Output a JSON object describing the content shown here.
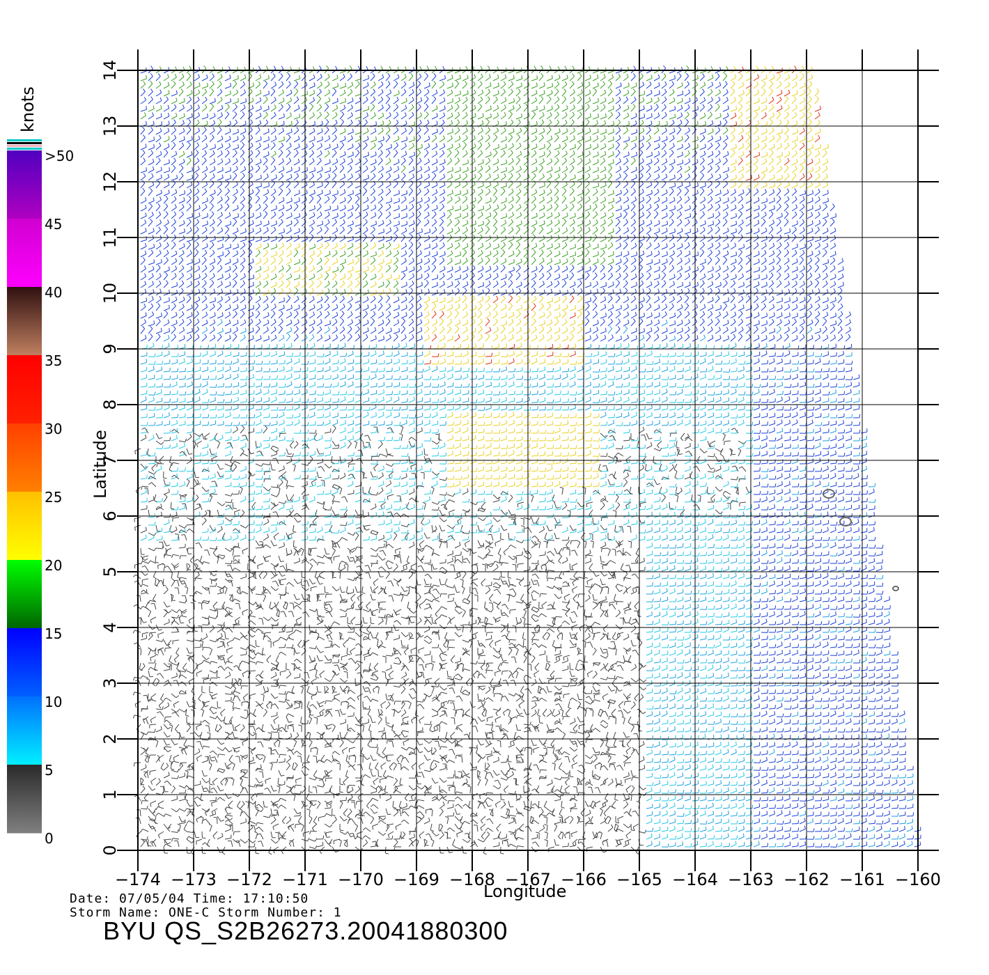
{
  "map": {
    "lon_range": [
      -174,
      -160
    ],
    "lat_range": [
      0,
      14
    ],
    "lon_ticks": [
      "-174",
      "-173",
      "-172",
      "-171",
      "-170",
      "-169",
      "-168",
      "-167",
      "-166",
      "-165",
      "-164",
      "-163",
      "-162",
      "-161",
      "-160"
    ],
    "lat_ticks": [
      "0",
      "1",
      "2",
      "3",
      "4",
      "5",
      "6",
      "7",
      "8",
      "9",
      "10",
      "11",
      "12",
      "13",
      "14"
    ],
    "xlabel": "Longitude",
    "ylabel": "Latitude",
    "swath_edge_east": [
      [
        -161.9,
        14
      ],
      [
        -160,
        0
      ]
    ],
    "field": "wind barbs colored by speed",
    "islands": [
      [
        -161.6,
        6.4
      ],
      [
        -161.3,
        5.9
      ],
      [
        -160.4,
        4.7
      ]
    ]
  },
  "colorbar": {
    "title": "knots",
    "labels": [
      ">50",
      "45",
      "40",
      "35",
      "30",
      "25",
      "20",
      "15",
      "10",
      "5",
      "0"
    ],
    "colors": {
      "0-5": [
        "#808080",
        "#2a2a2a"
      ],
      "5-10": [
        "#00f0ff",
        "#0070ff"
      ],
      "10-15": [
        "#0060ff",
        "#0000ff"
      ],
      "15-20": [
        "#006400",
        "#00ff00"
      ],
      "20-25": [
        "#ffff00",
        "#ffc000"
      ],
      "25-30": [
        "#ff8000",
        "#ff4000"
      ],
      "30-35": [
        "#ff2000",
        "#ff0000"
      ],
      "35-40": [
        "#c08060",
        "#301010"
      ],
      "40-45": [
        "#ff00ff",
        "#d000d0"
      ],
      "45-50": [
        "#b000c0",
        "#5000c0"
      ]
    }
  },
  "footer": {
    "line1": "Date: 07/05/04   Time: 17:10:50",
    "line2": "Storm Name: ONE-C   Storm Number: 1",
    "file_id": "BYU QS_S2B26273.20041880300"
  }
}
